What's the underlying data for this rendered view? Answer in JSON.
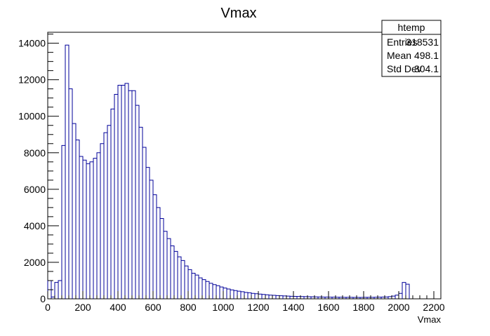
{
  "chart_data": {
    "type": "bar",
    "title": "Vmax",
    "xlabel": "Vmax",
    "ylabel": "",
    "xlim": [
      0,
      2240
    ],
    "ylim": [
      0,
      14600
    ],
    "bin_width": 20,
    "x_ticks": [
      0,
      200,
      400,
      600,
      800,
      1000,
      1200,
      1400,
      1600,
      1800,
      2000,
      2200
    ],
    "y_ticks": [
      0,
      2000,
      4000,
      6000,
      8000,
      10000,
      12000,
      14000
    ],
    "bin_edges_start": 0,
    "values": [
      1000,
      100,
      900,
      1000,
      8400,
      13900,
      11500,
      9600,
      8700,
      7800,
      7600,
      7400,
      7500,
      7700,
      8000,
      8500,
      9100,
      9500,
      10400,
      11200,
      11700,
      11700,
      11800,
      11400,
      11400,
      10600,
      9400,
      8300,
      7200,
      6500,
      5700,
      5000,
      4400,
      3700,
      3300,
      2900,
      2600,
      2300,
      2100,
      1800,
      1600,
      1400,
      1300,
      1150,
      1050,
      950,
      850,
      780,
      720,
      650,
      590,
      540,
      490,
      450,
      420,
      390,
      350,
      330,
      300,
      280,
      260,
      240,
      220,
      200,
      190,
      180,
      170,
      160,
      150,
      140,
      135,
      130,
      125,
      120,
      115,
      110,
      105,
      100,
      98,
      95,
      92,
      90,
      88,
      86,
      84,
      82,
      80,
      78,
      76,
      78,
      80,
      80,
      80,
      85,
      90,
      95,
      100,
      120,
      150,
      200,
      300,
      900,
      800,
      0,
      0,
      0,
      0,
      0,
      0,
      0,
      0,
      0
    ],
    "series": [
      {
        "name": "htemp"
      }
    ],
    "stats": {
      "title": "htemp",
      "rows": [
        {
          "label": "Entries",
          "value": "318531"
        },
        {
          "label": "Mean",
          "value": "498.1"
        },
        {
          "label": "Std Dev",
          "value": "304.1"
        }
      ]
    },
    "line_color": "#000099",
    "frame_color": "#000000"
  }
}
